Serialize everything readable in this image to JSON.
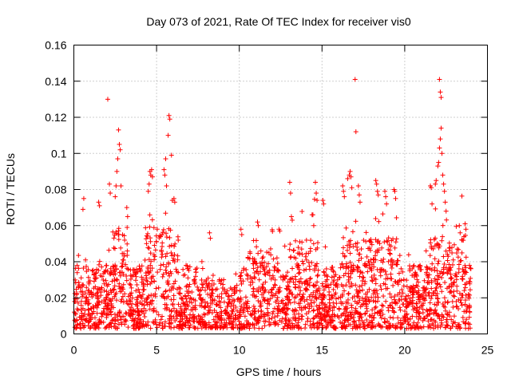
{
  "chart_data": {
    "type": "scatter",
    "title": "Day 073 of 2021, Rate Of TEC Index for receiver vis0",
    "xlabel": "GPS time / hours",
    "ylabel": "ROTI / TECUs",
    "xlim": [
      0,
      25
    ],
    "ylim": [
      0,
      0.16
    ],
    "xticks": [
      0,
      5,
      10,
      15,
      20,
      25
    ],
    "xtick_labels": [
      "0",
      "5",
      "10",
      "15",
      "20",
      "25"
    ],
    "yticks": [
      0,
      0.02,
      0.04,
      0.06,
      0.08,
      0.1,
      0.12,
      0.14,
      0.16
    ],
    "ytick_labels": [
      "0",
      "0.02",
      "0.04",
      "0.06",
      "0.08",
      "0.1",
      "0.12",
      "0.14",
      "0.16"
    ],
    "grid": true,
    "marker": "+",
    "color": "#ff0000",
    "series": [
      {
        "name": "ROTI",
        "points": [
          [
            2.05,
            0.13
          ],
          [
            17.0,
            0.141
          ],
          [
            22.1,
            0.141
          ],
          [
            17.05,
            0.112
          ],
          [
            5.75,
            0.121
          ],
          [
            5.8,
            0.119
          ],
          [
            5.7,
            0.11
          ],
          [
            22.15,
            0.134
          ],
          [
            22.2,
            0.131
          ],
          [
            2.7,
            0.113
          ],
          [
            2.75,
            0.105
          ],
          [
            2.8,
            0.102
          ],
          [
            2.65,
            0.097
          ],
          [
            2.6,
            0.09
          ],
          [
            2.55,
            0.082
          ],
          [
            2.85,
            0.082
          ],
          [
            2.5,
            0.076
          ],
          [
            5.55,
            0.097
          ],
          [
            5.45,
            0.091
          ],
          [
            5.5,
            0.088
          ],
          [
            5.6,
            0.082
          ],
          [
            4.6,
            0.09
          ],
          [
            4.65,
            0.088
          ],
          [
            4.7,
            0.091
          ],
          [
            4.75,
            0.087
          ],
          [
            4.55,
            0.083
          ],
          [
            4.5,
            0.079
          ],
          [
            5.9,
            0.099
          ],
          [
            6.05,
            0.075
          ],
          [
            6.1,
            0.073
          ],
          [
            5.95,
            0.074
          ],
          [
            0.6,
            0.075
          ],
          [
            0.55,
            0.069
          ],
          [
            1.5,
            0.073
          ],
          [
            1.55,
            0.071
          ],
          [
            2.15,
            0.083
          ],
          [
            2.2,
            0.078
          ],
          [
            3.2,
            0.07
          ],
          [
            3.25,
            0.065
          ],
          [
            13.05,
            0.084
          ],
          [
            13.1,
            0.078
          ],
          [
            13.15,
            0.065
          ],
          [
            13.2,
            0.063
          ],
          [
            14.4,
            0.066
          ],
          [
            14.45,
            0.066
          ],
          [
            14.5,
            0.06
          ],
          [
            14.6,
            0.084
          ],
          [
            14.65,
            0.078
          ],
          [
            14.7,
            0.074
          ],
          [
            15.05,
            0.074
          ],
          [
            15.1,
            0.072
          ],
          [
            16.25,
            0.082
          ],
          [
            16.3,
            0.079
          ],
          [
            16.35,
            0.076
          ],
          [
            16.55,
            0.086
          ],
          [
            16.65,
            0.088
          ],
          [
            16.7,
            0.09
          ],
          [
            16.75,
            0.087
          ],
          [
            16.8,
            0.081
          ],
          [
            17.2,
            0.082
          ],
          [
            17.25,
            0.077
          ],
          [
            17.3,
            0.073
          ],
          [
            18.25,
            0.085
          ],
          [
            18.3,
            0.083
          ],
          [
            18.35,
            0.079
          ],
          [
            18.4,
            0.077
          ],
          [
            18.8,
            0.079
          ],
          [
            18.85,
            0.076
          ],
          [
            18.9,
            0.072
          ],
          [
            19.35,
            0.08
          ],
          [
            19.4,
            0.079
          ],
          [
            19.45,
            0.075
          ],
          [
            21.55,
            0.082
          ],
          [
            21.6,
            0.081
          ],
          [
            21.65,
            0.072
          ],
          [
            22.0,
            0.093
          ],
          [
            22.05,
            0.095
          ],
          [
            22.1,
            0.103
          ],
          [
            22.15,
            0.108
          ],
          [
            22.2,
            0.114
          ],
          [
            22.25,
            0.1
          ],
          [
            22.3,
            0.088
          ],
          [
            22.35,
            0.083
          ],
          [
            22.4,
            0.079
          ],
          [
            21.9,
            0.085
          ],
          [
            21.85,
            0.083
          ],
          [
            22.45,
            0.073
          ],
          [
            22.5,
            0.068
          ],
          [
            11.1,
            0.062
          ],
          [
            11.15,
            0.06
          ],
          [
            12.4,
            0.058
          ],
          [
            12.45,
            0.057
          ],
          [
            8.2,
            0.056
          ],
          [
            8.25,
            0.053
          ],
          [
            10.1,
            0.058
          ],
          [
            10.15,
            0.055
          ],
          [
            23.65,
            0.061
          ],
          [
            23.7,
            0.058
          ],
          [
            23.3,
            0.06
          ],
          [
            23.35,
            0.056
          ]
        ]
      }
    ],
    "dense_band": {
      "x_range": [
        0,
        24
      ],
      "typical_upper": 0.035,
      "typical_lower": 0.003
    }
  }
}
